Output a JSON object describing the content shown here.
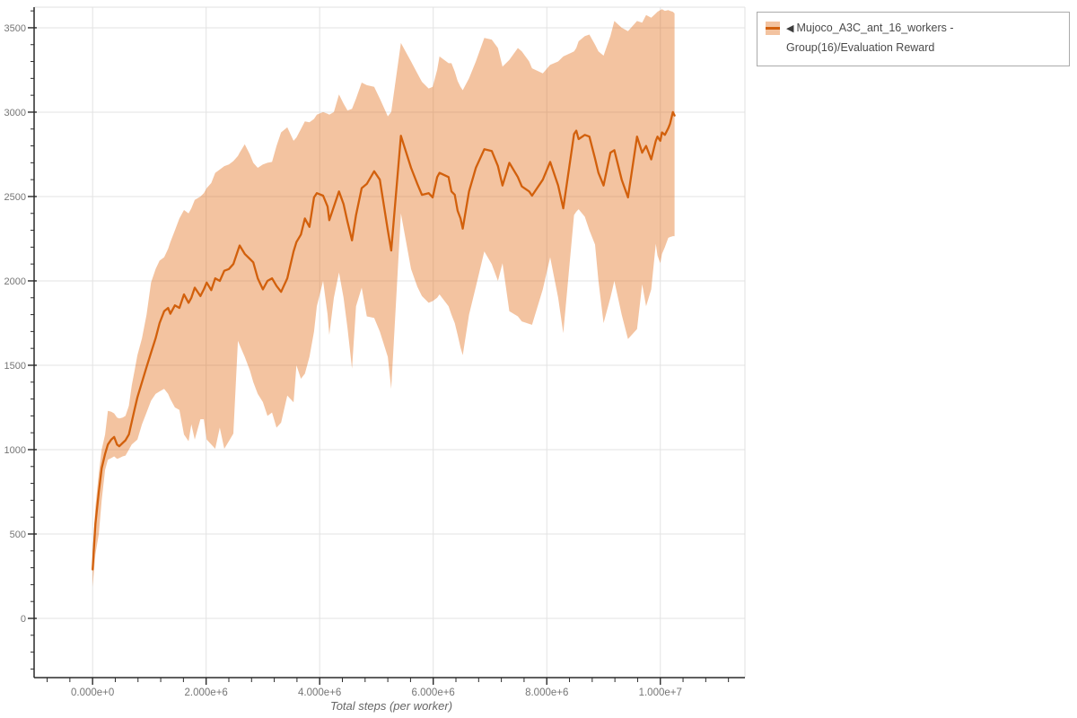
{
  "colors": {
    "line": "#d2600c",
    "band_fill": "#e06a12",
    "band_alpha": 0.4,
    "grid": "#e3e3e3",
    "frame_light": "#e0e0e0",
    "spine": "#2a2a2a",
    "tick": "#2a2a2a",
    "tick_label": "#757575",
    "axis_title": "#666666",
    "legend_border": "#ababab",
    "legend_text": "#4a4a4a",
    "background": "#ffffff"
  },
  "legend": {
    "collapse_icon": "◀",
    "label": "Mujoco_A3C_ant_16_workers - Group(16)/Evaluation Reward"
  },
  "chart_data": {
    "type": "line",
    "title": "",
    "xlabel": "Total steps (per worker)",
    "ylabel": "",
    "legend_position": "top-right-outside",
    "grid": "major",
    "x_unit": "steps",
    "x_multiplier": 1000000,
    "xlim_millions": [
      -1.03,
      11.49
    ],
    "ylim": [
      -351,
      3622
    ],
    "x_tick_values_millions": [
      0,
      2,
      4,
      6,
      8,
      10
    ],
    "x_tick_labels": [
      "0.000e+0",
      "2.000e+6",
      "4.000e+6",
      "6.000e+6",
      "8.000e+6",
      "1.000e+7"
    ],
    "x_minor_step_millions": 0.4,
    "y_tick_values": [
      0,
      500,
      1000,
      1500,
      2000,
      2500,
      3000,
      3500
    ],
    "y_tick_labels": [
      "0",
      "500",
      "1000",
      "1500",
      "2000",
      "2500",
      "3000",
      "3500"
    ],
    "y_minor_step": 100,
    "series_name": "Mujoco_A3C_ant_16_workers - Group(16)/Evaluation Reward",
    "band_meaning": "min-max range over 16 workers",
    "x_millions": [
      0.0,
      0.05,
      0.11,
      0.16,
      0.22,
      0.27,
      0.33,
      0.38,
      0.43,
      0.47,
      0.53,
      0.58,
      0.64,
      0.69,
      0.74,
      0.79,
      0.87,
      0.95,
      1.03,
      1.11,
      1.18,
      1.26,
      1.33,
      1.37,
      1.45,
      1.53,
      1.61,
      1.69,
      1.74,
      1.8,
      1.9,
      1.96,
      2.01,
      2.09,
      2.16,
      2.24,
      2.32,
      2.4,
      2.48,
      2.56,
      2.59,
      2.68,
      2.77,
      2.83,
      2.91,
      3.0,
      3.08,
      3.16,
      3.24,
      3.32,
      3.43,
      3.54,
      3.59,
      3.67,
      3.74,
      3.82,
      3.9,
      3.95,
      4.06,
      4.14,
      4.17,
      4.25,
      4.34,
      4.42,
      4.49,
      4.57,
      4.64,
      4.74,
      4.83,
      4.96,
      5.06,
      5.2,
      5.26,
      5.43,
      5.61,
      5.72,
      5.8,
      5.92,
      5.99,
      6.07,
      6.11,
      6.27,
      6.32,
      6.38,
      6.43,
      6.48,
      6.52,
      6.63,
      6.75,
      6.9,
      7.03,
      7.14,
      7.22,
      7.34,
      7.49,
      7.56,
      7.69,
      7.74,
      7.93,
      8.06,
      8.2,
      8.29,
      8.48,
      8.52,
      8.56,
      8.67,
      8.75,
      8.85,
      8.91,
      9.0,
      9.12,
      9.19,
      9.32,
      9.43,
      9.59,
      9.68,
      9.75,
      9.84,
      9.92,
      9.95,
      10.0,
      10.03,
      10.08,
      10.14,
      10.17,
      10.22,
      10.25
    ],
    "mean": [
      290,
      560,
      750,
      890,
      975,
      1030,
      1060,
      1075,
      1030,
      1020,
      1040,
      1055,
      1090,
      1165,
      1240,
      1310,
      1400,
      1490,
      1575,
      1660,
      1750,
      1820,
      1840,
      1805,
      1855,
      1840,
      1920,
      1870,
      1900,
      1960,
      1910,
      1950,
      1990,
      1945,
      2015,
      2000,
      2060,
      2070,
      2100,
      2180,
      2210,
      2160,
      2130,
      2110,
      2015,
      1950,
      2000,
      2015,
      1970,
      1935,
      2015,
      2175,
      2230,
      2275,
      2370,
      2320,
      2495,
      2520,
      2505,
      2440,
      2360,
      2440,
      2530,
      2455,
      2350,
      2240,
      2390,
      2550,
      2575,
      2650,
      2600,
      2300,
      2180,
      2860,
      2670,
      2575,
      2510,
      2520,
      2495,
      2615,
      2640,
      2615,
      2530,
      2510,
      2415,
      2370,
      2310,
      2530,
      2670,
      2780,
      2770,
      2680,
      2565,
      2700,
      2615,
      2560,
      2530,
      2505,
      2600,
      2705,
      2565,
      2430,
      2870,
      2890,
      2840,
      2865,
      2855,
      2725,
      2640,
      2565,
      2760,
      2775,
      2600,
      2495,
      2855,
      2760,
      2800,
      2720,
      2830,
      2855,
      2830,
      2880,
      2865,
      2905,
      2930,
      3000,
      2980
    ],
    "lower": [
      185,
      380,
      500,
      700,
      880,
      940,
      950,
      960,
      945,
      950,
      960,
      965,
      1000,
      1030,
      1045,
      1060,
      1150,
      1220,
      1290,
      1330,
      1345,
      1360,
      1330,
      1300,
      1250,
      1235,
      1090,
      1050,
      1150,
      1060,
      1180,
      1180,
      1060,
      1030,
      1005,
      1130,
      1005,
      1050,
      1095,
      1645,
      1620,
      1550,
      1470,
      1400,
      1330,
      1282,
      1200,
      1220,
      1130,
      1160,
      1320,
      1280,
      1500,
      1420,
      1450,
      1550,
      1700,
      1850,
      2000,
      1800,
      1680,
      1900,
      2050,
      1900,
      1720,
      1480,
      1850,
      1960,
      1790,
      1780,
      1700,
      1550,
      1360,
      2400,
      2070,
      1965,
      1910,
      1870,
      1880,
      1900,
      1920,
      1850,
      1800,
      1750,
      1680,
      1605,
      1560,
      1800,
      1965,
      2175,
      2100,
      2000,
      2105,
      1820,
      1790,
      1760,
      1745,
      1740,
      1950,
      2140,
      1900,
      1690,
      2390,
      2410,
      2425,
      2380,
      2300,
      2215,
      2000,
      1750,
      1900,
      2000,
      1800,
      1655,
      1715,
      1980,
      1850,
      1950,
      2220,
      2150,
      2105,
      2160,
      2200,
      2255,
      2260,
      2265,
      2265
    ],
    "upper": [
      395,
      660,
      860,
      1000,
      1090,
      1230,
      1225,
      1215,
      1190,
      1185,
      1190,
      1200,
      1260,
      1380,
      1470,
      1560,
      1660,
      1800,
      1990,
      2070,
      2120,
      2140,
      2190,
      2230,
      2300,
      2370,
      2420,
      2400,
      2430,
      2480,
      2500,
      2520,
      2550,
      2580,
      2640,
      2660,
      2680,
      2690,
      2710,
      2740,
      2760,
      2810,
      2750,
      2700,
      2670,
      2690,
      2700,
      2705,
      2800,
      2880,
      2910,
      2830,
      2850,
      2900,
      2945,
      2940,
      2960,
      2985,
      3000,
      2990,
      2985,
      3000,
      3105,
      3050,
      3010,
      3020,
      3080,
      3175,
      3160,
      3150,
      3080,
      2975,
      3000,
      3410,
      3300,
      3230,
      3180,
      3140,
      3150,
      3250,
      3330,
      3290,
      3290,
      3240,
      3185,
      3150,
      3130,
      3200,
      3300,
      3440,
      3430,
      3380,
      3270,
      3310,
      3380,
      3360,
      3300,
      3260,
      3230,
      3280,
      3300,
      3330,
      3360,
      3380,
      3420,
      3450,
      3460,
      3400,
      3360,
      3335,
      3450,
      3540,
      3500,
      3480,
      3540,
      3530,
      3575,
      3560,
      3585,
      3595,
      3605,
      3610,
      3600,
      3605,
      3600,
      3595,
      3585
    ]
  }
}
